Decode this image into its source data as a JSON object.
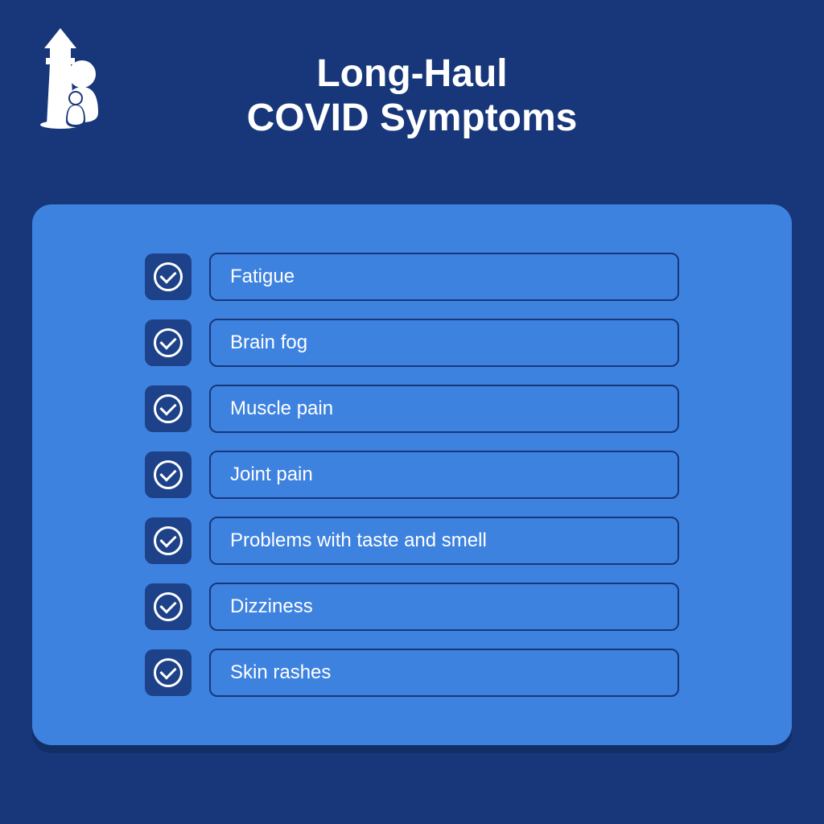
{
  "colors": {
    "background": "#17377a",
    "card_bg": "#3e82e0",
    "checkbox_bg": "#1e4289",
    "checkbox_border": "#ffffff",
    "label_border": "#17377a",
    "text_white": "#ffffff",
    "title_color": "#ffffff"
  },
  "layout": {
    "title_fontsize": 48,
    "symptom_fontsize": 24,
    "checkbox_size": 58,
    "check_circle_size": 36
  },
  "title": {
    "line1": "Long-Haul",
    "line2": "COVID Symptoms"
  },
  "symptoms": [
    {
      "label": "Fatigue"
    },
    {
      "label": "Brain fog"
    },
    {
      "label": "Muscle pain"
    },
    {
      "label": "Joint pain"
    },
    {
      "label": "Problems with taste and smell"
    },
    {
      "label": "Dizziness"
    },
    {
      "label": "Skin rashes"
    }
  ]
}
